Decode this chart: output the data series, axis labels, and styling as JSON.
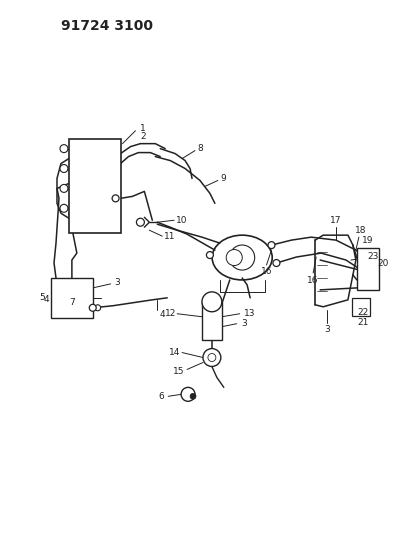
{
  "title": "91724 3100",
  "bg_color": "#ffffff",
  "line_color": "#222222",
  "title_fontsize": 10,
  "label_fontsize": 6.5,
  "figsize": [
    3.94,
    5.33
  ],
  "dpi": 100
}
